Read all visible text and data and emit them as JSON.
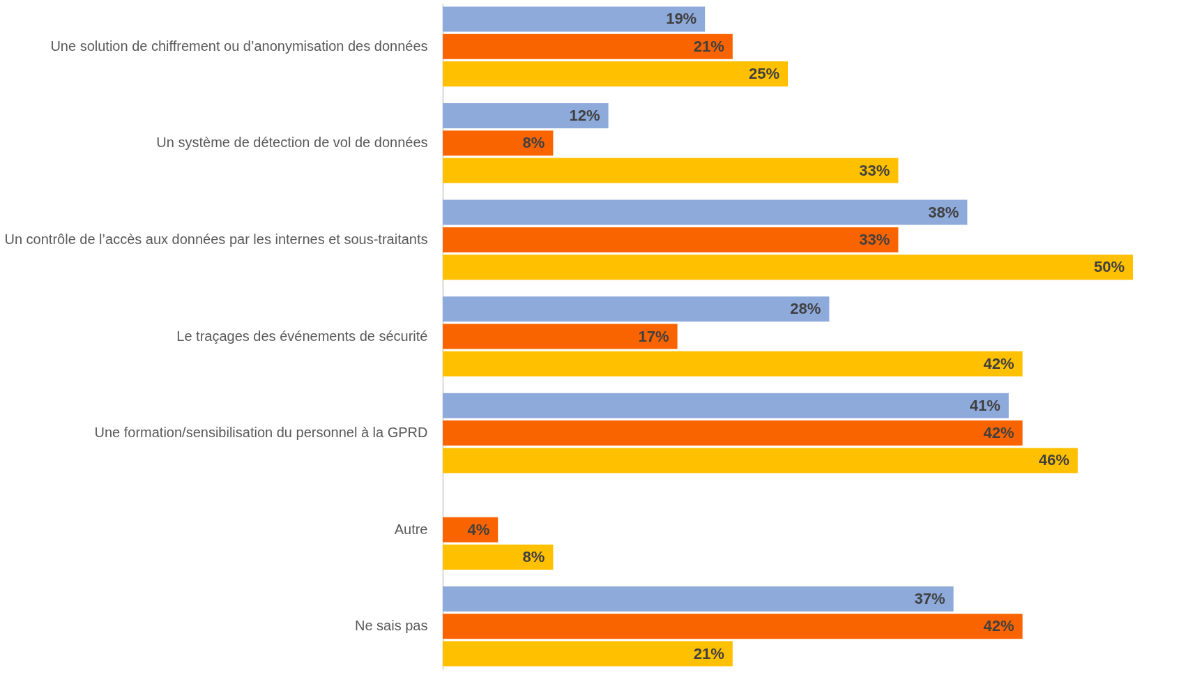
{
  "chart_data": {
    "type": "bar",
    "orientation": "horizontal",
    "categories": [
      "Une solution de chiffrement  ou d’anonymisation des données",
      "Un système de détection de vol de données",
      "Un contrôle de l’accès aux données par les internes et sous-traitants",
      "Le traçages des événements de sécurité",
      "Une formation/sensibilisation du personnel à la GPRD",
      "Autre",
      "Ne sais pas"
    ],
    "series": [
      {
        "color": "#8eaadb",
        "values": [
          19,
          12,
          38,
          28,
          41,
          null,
          37
        ],
        "value_labels": [
          "19%",
          "12%",
          "38%",
          "28%",
          "41%",
          null,
          "37%"
        ]
      },
      {
        "color": "#fa6400",
        "values": [
          21,
          8,
          33,
          17,
          42,
          4,
          42
        ],
        "value_labels": [
          "21%",
          "8%",
          "33%",
          "17%",
          "42%",
          "4%",
          "42%"
        ]
      },
      {
        "color": "#ffc000",
        "values": [
          25,
          33,
          50,
          42,
          46,
          8,
          21
        ],
        "value_labels": [
          "25%",
          "33%",
          "50%",
          "42%",
          "46%",
          "8%",
          "21%"
        ]
      }
    ]
  }
}
